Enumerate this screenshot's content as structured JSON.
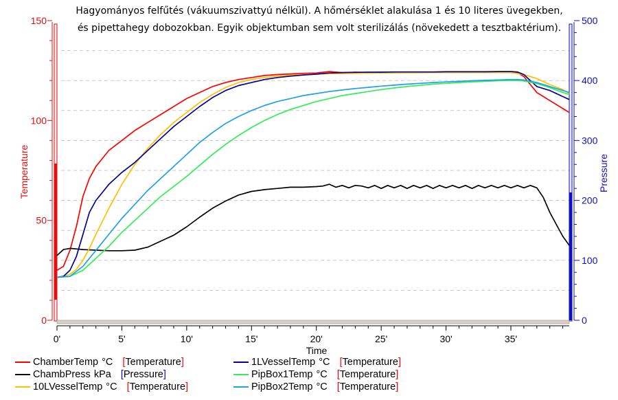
{
  "title_line1": "Hagyományos felfűtés (vákuumszivattyú nélkül). A hőmérséklet alakulása 1 és 10 literes üvegekben,",
  "title_line2": "és pipettahegy dobozokban. Egyik objektumban sem volt sterilizálás (növekedett a tesztbaktérium).",
  "chart_data": {
    "type": "line",
    "title": "Hagyományos felfűtés (vákuumszivattyú nélkül). A hőmérséklet alakulása 1 és 10 literes üvegekben, és pipettahegy dobozokban. Egyik objektumban sem volt sterilizálás (növekedett a tesztbaktérium).",
    "xlabel": "Time",
    "ylabel_left": "Temperature",
    "ylabel_right": "Pressure",
    "xlim": [
      0,
      39.5
    ],
    "ylim_left": [
      0,
      150
    ],
    "ylim_right": [
      0,
      500
    ],
    "x_ticks": [
      0,
      5,
      10,
      15,
      20,
      25,
      30,
      35
    ],
    "x_tick_labels": [
      "0'",
      "5'",
      "10'",
      "15'",
      "20'",
      "25'",
      "30'",
      "35'"
    ],
    "y_left_ticks": [
      0,
      50,
      100,
      150
    ],
    "y_right_ticks": [
      0,
      100,
      200,
      300,
      400,
      500
    ],
    "series": [
      {
        "name": "ChamberTemp",
        "unit": "°C",
        "axis": "Temperature",
        "color": "#ff0000",
        "x": [
          0,
          0.5,
          1,
          1.5,
          2,
          2.5,
          3,
          3.5,
          4,
          5,
          6,
          7,
          8,
          9,
          10,
          11,
          12,
          13,
          14,
          15,
          16,
          17,
          18,
          19,
          20,
          21,
          22,
          23,
          24,
          25,
          26,
          27,
          28,
          29,
          30,
          31,
          32,
          33,
          34,
          35,
          35.5,
          36,
          36.5,
          37,
          38,
          39,
          39.5
        ],
        "values": [
          25,
          27,
          35,
          47,
          62,
          71,
          77,
          81,
          85,
          90,
          95,
          99,
          103,
          107,
          111,
          114,
          117,
          119,
          120.5,
          121.5,
          122.5,
          123,
          123.3,
          123.6,
          123.8,
          124.5,
          124,
          124.2,
          124,
          124.2,
          124,
          124.2,
          124,
          124.2,
          124,
          124.2,
          124,
          124.2,
          124,
          124,
          124,
          122,
          118,
          114,
          110,
          106,
          104
        ]
      },
      {
        "name": "ChambPress",
        "unit": "kPa",
        "axis": "Pressure",
        "color": "#000000",
        "x": [
          0,
          0.5,
          1,
          1.5,
          2,
          3,
          4,
          5,
          6,
          7,
          8,
          9,
          10,
          11,
          12,
          13,
          14,
          15,
          16,
          17,
          18,
          19,
          20,
          20.5,
          21,
          21.5,
          22,
          22.5,
          23,
          23.5,
          24,
          24.5,
          25,
          25.5,
          26,
          26.5,
          27,
          27.5,
          28,
          28.5,
          29,
          29.5,
          30,
          30.5,
          31,
          31.5,
          32,
          32.5,
          33,
          33.5,
          34,
          34.5,
          35,
          35.5,
          36,
          36.5,
          37,
          37.5,
          38,
          38.5,
          39,
          39.5
        ],
        "values": [
          108,
          118,
          120,
          119,
          118,
          117,
          116,
          116,
          117,
          122,
          132,
          142,
          156,
          172,
          187,
          199,
          209,
          215,
          218,
          220,
          222,
          222,
          223,
          224,
          227,
          222,
          225,
          221,
          225,
          224,
          221,
          225,
          220,
          225,
          221,
          225,
          220,
          225,
          221,
          225,
          220,
          225,
          221,
          225,
          221,
          225,
          220,
          225,
          221,
          225,
          221,
          225,
          221,
          225,
          221,
          225,
          221,
          205,
          180,
          160,
          140,
          125
        ]
      },
      {
        "name": "10LVesselTemp",
        "unit": "°C",
        "axis": "Temperature",
        "color": "#ffc000",
        "x": [
          0,
          0.5,
          1,
          1.5,
          2,
          2.5,
          3,
          4,
          5,
          6,
          7,
          8,
          9,
          10,
          11,
          12,
          13,
          14,
          15,
          16,
          17,
          18,
          19,
          20,
          21,
          22,
          23,
          24,
          25,
          26,
          27,
          28,
          29,
          30,
          31,
          32,
          33,
          34,
          35,
          35.5,
          36,
          37,
          38,
          39,
          39.5
        ],
        "values": [
          21.5,
          22,
          23,
          25.5,
          30,
          36,
          43,
          56,
          68,
          78,
          86,
          93,
          99,
          104,
          109,
          113,
          116.5,
          119,
          120.5,
          121.5,
          122.2,
          122.7,
          123,
          123.2,
          123.4,
          123.5,
          123.6,
          123.7,
          123.8,
          123.8,
          123.9,
          123.9,
          124,
          124,
          124,
          124,
          124,
          124,
          124,
          123.5,
          123,
          121,
          118,
          115.5,
          113.5
        ]
      },
      {
        "name": "1LVesselTemp",
        "unit": "°C",
        "axis": "Temperature",
        "color": "#000096",
        "x": [
          0,
          0.5,
          1,
          1.5,
          2,
          2.5,
          3,
          3.5,
          4,
          5,
          6,
          7,
          8,
          9,
          10,
          11,
          12,
          13,
          14,
          15,
          16,
          17,
          18,
          19,
          20,
          21,
          22,
          23,
          24,
          25,
          26,
          27,
          28,
          29,
          30,
          31,
          32,
          33,
          34,
          35,
          35.5,
          36,
          36.5,
          37,
          38,
          39,
          39.5
        ],
        "values": [
          21.5,
          22,
          25,
          32,
          43,
          54,
          60,
          64,
          68,
          74,
          79,
          85,
          91,
          97,
          102,
          107,
          111.5,
          115,
          117.5,
          119,
          120.5,
          121.5,
          122.2,
          122.8,
          123.2,
          123.8,
          124,
          124.1,
          124.2,
          124.2,
          124.3,
          124.3,
          124.3,
          124.3,
          124.4,
          124.4,
          124.4,
          124.4,
          124.5,
          124.5,
          124.3,
          123,
          120,
          117,
          115,
          112,
          110.5
        ]
      },
      {
        "name": "PipBox1Temp",
        "unit": "°C",
        "axis": "Temperature",
        "color": "#33ee55",
        "x": [
          0,
          1,
          2,
          3,
          4,
          5,
          6,
          7,
          8,
          9,
          10,
          11,
          12,
          13,
          14,
          15,
          16,
          17,
          18,
          19,
          20,
          21,
          22,
          23,
          24,
          25,
          26,
          27,
          28,
          29,
          30,
          31,
          32,
          33,
          34,
          35,
          35.5,
          36,
          37,
          38,
          39,
          39.5
        ],
        "values": [
          21.5,
          22,
          25,
          31,
          37,
          44,
          50,
          56,
          62,
          67,
          72,
          77.5,
          83,
          88,
          92.5,
          96.5,
          100,
          103,
          105.5,
          107.5,
          109.5,
          111,
          112.5,
          113.5,
          114.5,
          115.5,
          116.3,
          117,
          117.6,
          118.2,
          118.6,
          119,
          119.3,
          119.6,
          119.9,
          120,
          120,
          119.8,
          118.5,
          116.5,
          114,
          113
        ]
      },
      {
        "name": "PipBox2Temp",
        "unit": "°C",
        "axis": "Temperature",
        "color": "#1fa0e6",
        "x": [
          0,
          1,
          2,
          3,
          4,
          5,
          6,
          7,
          8,
          9,
          10,
          11,
          12,
          13,
          14,
          15,
          16,
          17,
          18,
          19,
          20,
          21,
          22,
          23,
          24,
          25,
          26,
          27,
          28,
          29,
          30,
          31,
          32,
          33,
          34,
          35,
          35.5,
          36,
          37,
          38,
          39,
          39.5
        ],
        "values": [
          21.5,
          22,
          27,
          35,
          43,
          51,
          58,
          65,
          71,
          77,
          83,
          89,
          94,
          98.5,
          102,
          105,
          107.5,
          109.5,
          111,
          112.5,
          113.5,
          114.5,
          115.3,
          116,
          116.6,
          117.2,
          117.7,
          118.2,
          118.6,
          119,
          119.3,
          119.6,
          119.9,
          120.1,
          120.3,
          120.5,
          120.5,
          120.3,
          119,
          117,
          115,
          114
        ]
      }
    ]
  },
  "legend": [
    {
      "name": "ChamberTemp",
      "unit": "°C",
      "axis": "Temperature",
      "color": "#ff0000",
      "bracket_color": "#ff0000",
      "axis_color": "#000000"
    },
    {
      "name": "1LVesselTemp",
      "unit": "°C",
      "axis": "Temperature",
      "color": "#000096",
      "bracket_color": "#ff0000",
      "axis_color": "#000000"
    },
    {
      "name": "ChambPress",
      "unit": "kPa",
      "axis": "Pressure",
      "color": "#000000",
      "bracket_color": "#0000ff",
      "axis_color": "#000000"
    },
    {
      "name": "PipBox1Temp",
      "unit": "°C",
      "axis": "Temperature",
      "color": "#33ee55",
      "bracket_color": "#ff0000",
      "axis_color": "#000000"
    },
    {
      "name": "10LVesselTemp",
      "unit": "°C",
      "axis": "Temperature",
      "color": "#ffc000",
      "bracket_color": "#ff0000",
      "axis_color": "#000000"
    },
    {
      "name": "PipBox2Temp",
      "unit": "°C",
      "axis": "Temperature",
      "color": "#1fa0e6",
      "bracket_color": "#ff0000",
      "axis_color": "#000000"
    }
  ],
  "colors": {
    "left_axis": "#e01010",
    "right_axis": "#1010c0",
    "grid": "#c8c8c8",
    "scrollbar": "#d8d0c8"
  }
}
